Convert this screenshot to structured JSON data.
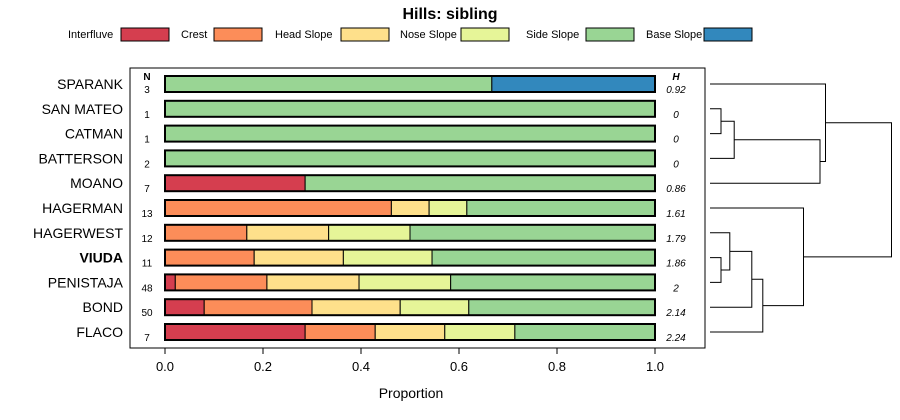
{
  "chart_data": {
    "type": "bar",
    "orientation": "horizontal-stacked",
    "title": "Hills: sibling",
    "xlabel": "Proportion",
    "xlim": [
      0,
      1
    ],
    "xticks": [
      0.0,
      0.2,
      0.4,
      0.6,
      0.8,
      1.0
    ],
    "xtick_labels": [
      "0.0",
      "0.2",
      "0.4",
      "0.6",
      "0.8",
      "1.0"
    ],
    "n_header": "N",
    "h_header": "H",
    "legend_position": "top",
    "legend": [
      {
        "name": "Interfluve",
        "color": "#d53e4f"
      },
      {
        "name": "Crest",
        "color": "#fc8d59"
      },
      {
        "name": "Head Slope",
        "color": "#fee08b"
      },
      {
        "name": "Nose Slope",
        "color": "#e6f598"
      },
      {
        "name": "Side Slope",
        "color": "#99d594"
      },
      {
        "name": "Base Slope",
        "color": "#3288bd"
      }
    ],
    "rows": [
      {
        "name": "SPARANK",
        "n": "3",
        "h": "0.92",
        "bold": false,
        "values": [
          0,
          0,
          0,
          0,
          0.667,
          0.333
        ]
      },
      {
        "name": "SAN MATEO",
        "n": "1",
        "h": "0",
        "bold": false,
        "values": [
          0,
          0,
          0,
          0,
          1.0,
          0
        ]
      },
      {
        "name": "CATMAN",
        "n": "1",
        "h": "0",
        "bold": false,
        "values": [
          0,
          0,
          0,
          0,
          1.0,
          0
        ]
      },
      {
        "name": "BATTERSON",
        "n": "2",
        "h": "0",
        "bold": false,
        "values": [
          0,
          0,
          0,
          0,
          1.0,
          0
        ]
      },
      {
        "name": "MOANO",
        "n": "7",
        "h": "0.86",
        "bold": false,
        "values": [
          0.286,
          0,
          0,
          0,
          0.714,
          0
        ]
      },
      {
        "name": "HAGERMAN",
        "n": "13",
        "h": "1.61",
        "bold": false,
        "values": [
          0,
          0.462,
          0.077,
          0.077,
          0.384,
          0
        ]
      },
      {
        "name": "HAGERWEST",
        "n": "12",
        "h": "1.79",
        "bold": false,
        "values": [
          0,
          0.167,
          0.167,
          0.166,
          0.5,
          0
        ]
      },
      {
        "name": "VIUDA",
        "n": "11",
        "h": "1.86",
        "bold": true,
        "values": [
          0,
          0.182,
          0.182,
          0.181,
          0.455,
          0
        ]
      },
      {
        "name": "PENISTAJA",
        "n": "48",
        "h": "2",
        "bold": false,
        "values": [
          0.021,
          0.187,
          0.188,
          0.187,
          0.417,
          0
        ]
      },
      {
        "name": "BOND",
        "n": "50",
        "h": "2.14",
        "bold": false,
        "values": [
          0.08,
          0.22,
          0.18,
          0.14,
          0.38,
          0
        ]
      },
      {
        "name": "FLACO",
        "n": "7",
        "h": "2.24",
        "bold": false,
        "values": [
          0.286,
          0.143,
          0.142,
          0.143,
          0.286,
          0
        ]
      }
    ],
    "dendrogram": [
      {
        "a": 1,
        "b": 2,
        "height": 0.1
      },
      {
        "a": "n0",
        "b": 3,
        "height": 0.22
      },
      {
        "a": 7,
        "b": 8,
        "height": 0.1
      },
      {
        "a": 6,
        "b": "n2",
        "height": 0.18
      },
      {
        "a": "n3",
        "b": 9,
        "height": 0.38
      },
      {
        "a": "n4",
        "b": 10,
        "height": 0.48
      },
      {
        "a": 5,
        "b": "n5",
        "height": 0.85
      },
      {
        "a": "n1",
        "b": 4,
        "height": 1.0
      },
      {
        "a": 0,
        "b": "n7",
        "height": 1.05
      },
      {
        "a": "n8",
        "b": "n6",
        "height": 1.65
      }
    ]
  }
}
